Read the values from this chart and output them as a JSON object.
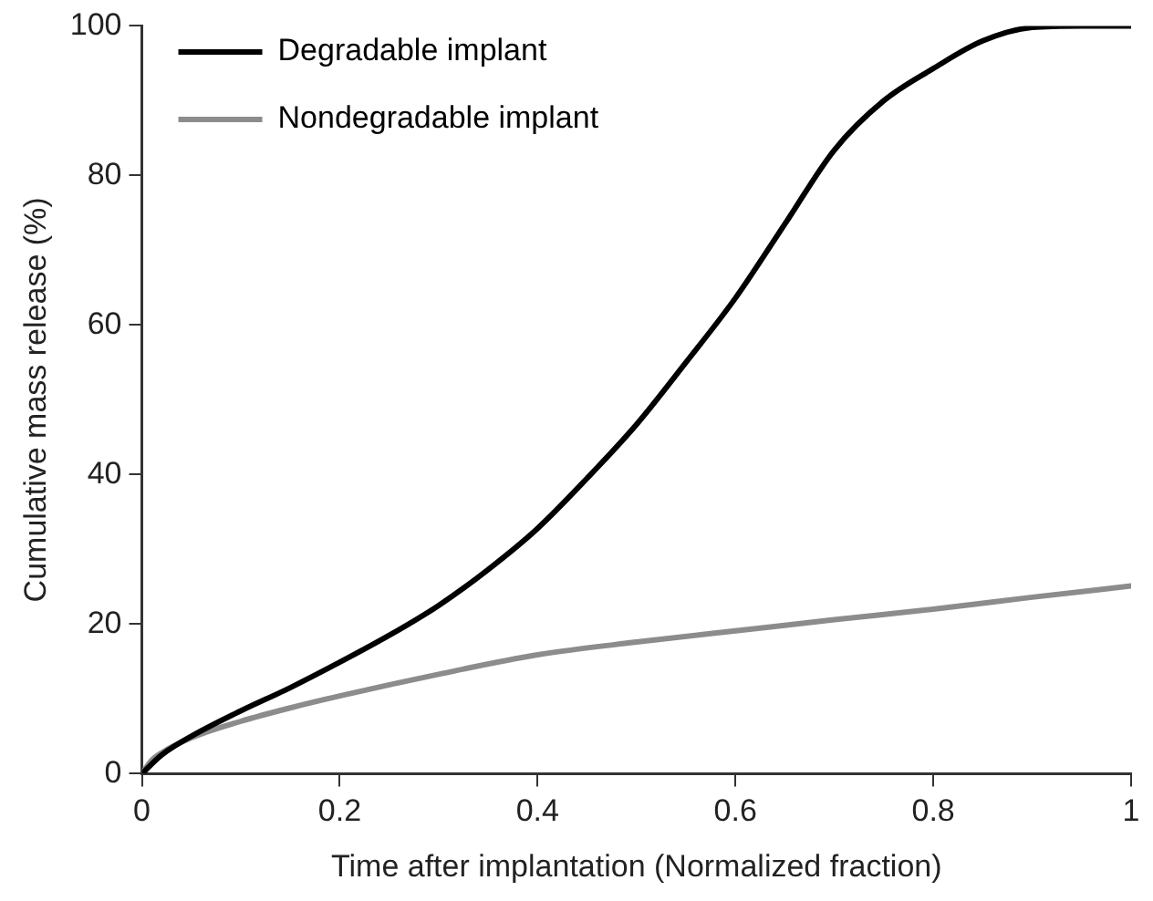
{
  "chart_data": {
    "type": "line",
    "xlabel": "Time after implantation (Normalized fraction)",
    "ylabel": "Cumulative mass release (%)",
    "xlim": [
      0,
      1
    ],
    "xticks": [
      0,
      0.2,
      0.4,
      0.6,
      0.8,
      1
    ],
    "ylim": [
      0,
      100
    ],
    "yticks": [
      0,
      20,
      40,
      60,
      80,
      100
    ],
    "grid": false,
    "legend": "top left",
    "marker": "none",
    "line_style": "solid",
    "series": [
      {
        "name": "Degradable implant",
        "color": "#000000",
        "x": [
          0,
          0.02,
          0.05,
          0.1,
          0.15,
          0.2,
          0.25,
          0.3,
          0.35,
          0.4,
          0.45,
          0.5,
          0.55,
          0.6,
          0.65,
          0.7,
          0.75,
          0.8,
          0.85,
          0.9,
          0.95,
          1
        ],
        "values": [
          0,
          2.5,
          5,
          8.4,
          11.5,
          14.9,
          18.5,
          22.5,
          27.3,
          32.8,
          39.5,
          46.7,
          55,
          63.6,
          73.5,
          83.4,
          90,
          94.3,
          98,
          99.8,
          100,
          100
        ]
      },
      {
        "name": "Nondegradable implant",
        "color": "#8c8c8c",
        "x": [
          0,
          0.01,
          0.02,
          0.05,
          0.1,
          0.15,
          0.2,
          0.3,
          0.4,
          0.5,
          0.6,
          0.7,
          0.8,
          0.9,
          1
        ],
        "values": [
          0,
          1.8,
          2.8,
          4.8,
          7,
          8.8,
          10.4,
          13.3,
          15.9,
          17.6,
          19.1,
          20.6,
          22,
          23.6,
          25.1
        ]
      }
    ]
  }
}
